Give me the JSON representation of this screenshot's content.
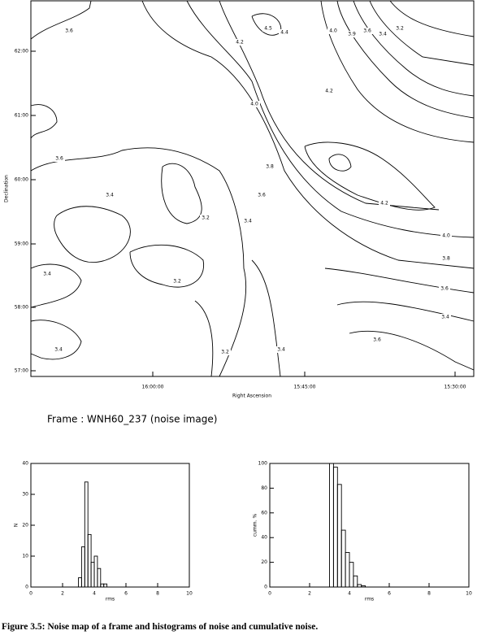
{
  "chart_data": [
    {
      "type": "contour",
      "xlabel": "Right Ascension",
      "ylabel": "Declination",
      "x_tick_labels": [
        "16:00:00",
        "15:45:00",
        "15:30:00"
      ],
      "y_tick_labels": [
        "62:00",
        "61:00",
        "60:00",
        "59:00",
        "58:00",
        "57:00"
      ],
      "contour_labels": [
        "3.6",
        "4.5",
        "4.4",
        "4.2",
        "4.0",
        "3.9",
        "3.6",
        "3.4",
        "3.2",
        "4.2",
        "4.0",
        "3.8",
        "3.6",
        "3.6",
        "3.4",
        "3.2",
        "3.4",
        "4.2",
        "4.0",
        "3.8",
        "3.4",
        "3.2",
        "3.6",
        "3.4",
        "3.6",
        "3.4",
        "3.2",
        "3.4"
      ],
      "note": "Frame :  WNH60_237    (noise image)"
    },
    {
      "type": "histogram",
      "xlabel": "rms",
      "ylabel": "N",
      "bins": [
        3.0,
        3.2,
        3.4,
        3.6,
        3.8,
        4.0,
        4.2,
        4.4,
        4.6,
        4.8,
        5.0
      ],
      "counts": [
        3,
        13,
        34,
        17,
        8,
        10,
        6,
        1,
        1,
        0
      ],
      "xlim": [
        0,
        10
      ],
      "xticks": [
        0,
        2,
        4,
        6,
        8,
        10
      ],
      "ylim": [
        0,
        40
      ],
      "yticks": [
        0,
        10,
        20,
        30,
        40
      ]
    },
    {
      "type": "histogram",
      "xlabel": "rms",
      "ylabel": "cumm. %",
      "bins": [
        3.0,
        3.2,
        3.4,
        3.6,
        3.8,
        4.0,
        4.2,
        4.4,
        4.6,
        4.8,
        5.0
      ],
      "counts": [
        100,
        97,
        83,
        46,
        28,
        20,
        9,
        2,
        1,
        0
      ],
      "xlim": [
        0,
        10
      ],
      "xticks": [
        0,
        2,
        4,
        6,
        8,
        10
      ],
      "ylim": [
        0,
        100
      ],
      "yticks": [
        0,
        20,
        40,
        60,
        80,
        100
      ]
    }
  ],
  "caption": {
    "label": "Figure 3.5:",
    "text": "Noise map of a frame and histograms of noise and cumulative noise."
  }
}
